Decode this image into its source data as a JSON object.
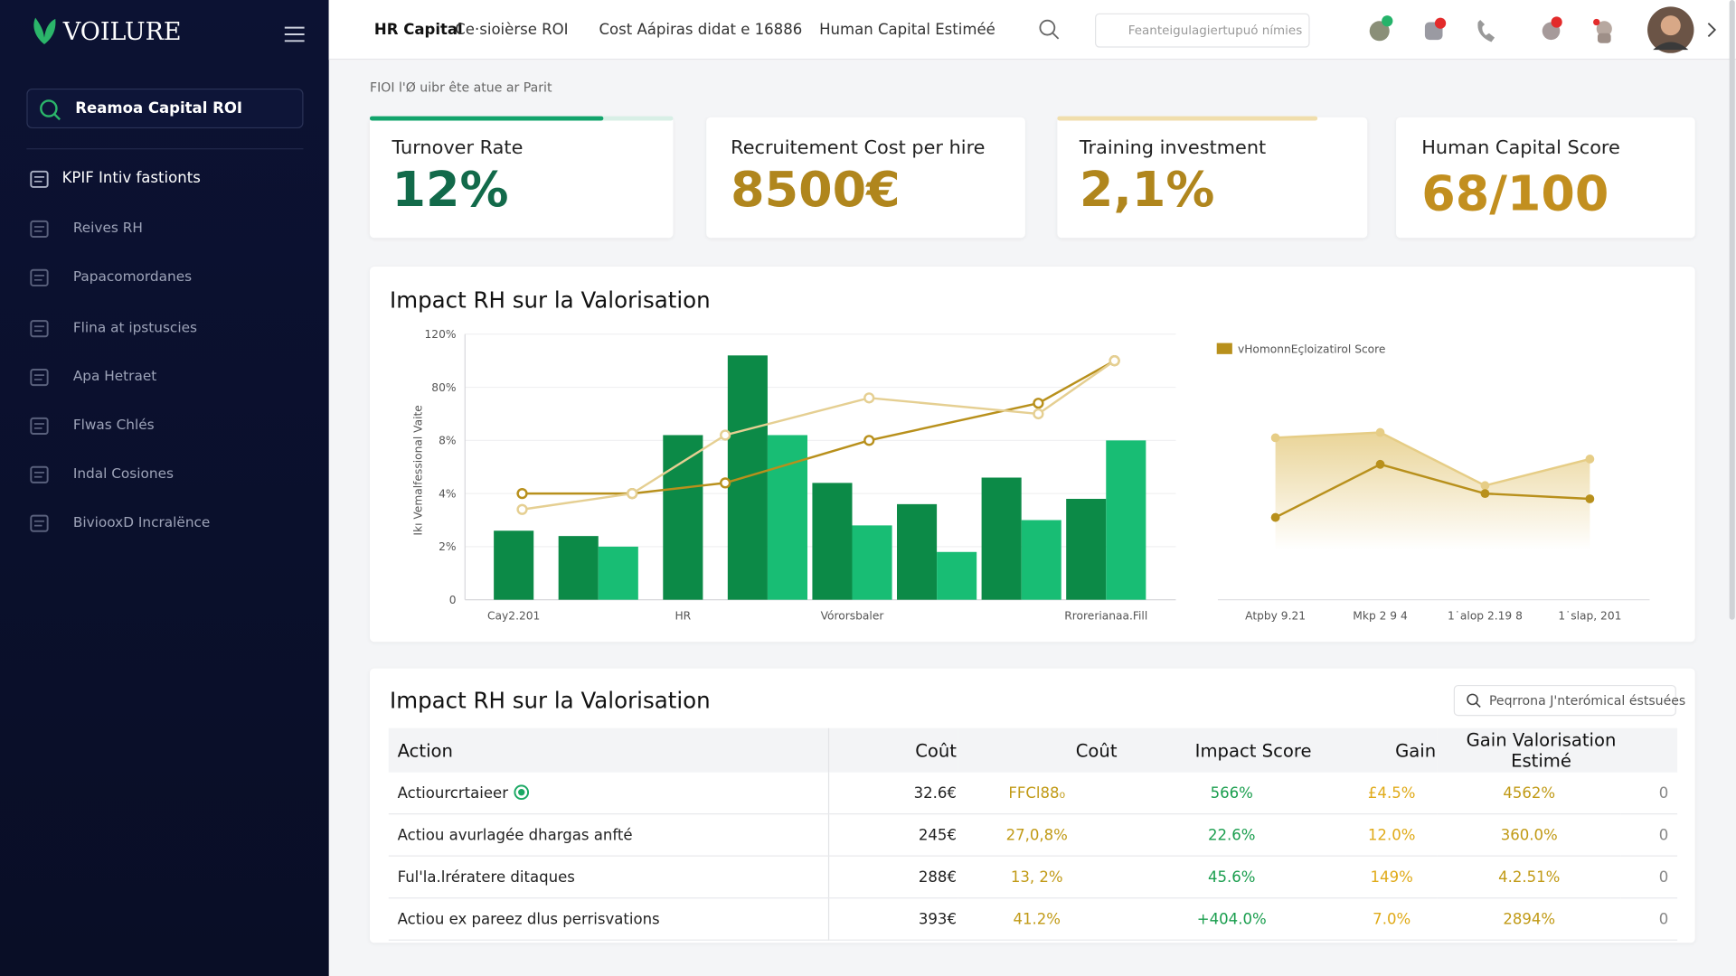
{
  "sidebar": {
    "logo": "VOILURE",
    "search": "Reamoa Capital ROI",
    "menu": [
      "KPIF Intiv fastionts",
      "Reives RH",
      "Papacomordanes",
      "Flina at ipstuscies",
      "Apa Hetraet",
      "Flwas Chlés",
      "Indal Cosiones",
      "BiviooxD Incralënce"
    ]
  },
  "header": {
    "tabs": [
      "HR Capital",
      "Ce·sioièrse ROI",
      "Cost Aápiras didat e 16886",
      "Human Capital Estiméé"
    ],
    "search": "Feanteigulagiertupuó nímies"
  },
  "breadcrumb": "FIOI l'Ø uibr ête atue ar Parit",
  "kpis": [
    {
      "label": "Turnover Rate",
      "value": "12%"
    },
    {
      "label": "Recruitement Cost per hire",
      "value": "8500€"
    },
    {
      "label": "Training investment",
      "value": "2,1%"
    },
    {
      "label": "Human Capital Score",
      "value": "68/100"
    }
  ],
  "chart_panel_title": "Impact RH sur la Valorisation",
  "chart_data": [
    {
      "type": "bar",
      "y_label": "Ikı Vemalfessional Vaite",
      "categories": [
        "Cay2.201",
        null,
        "HR",
        null,
        "Vórorsbaler",
        null,
        null,
        "Rrorerianaa.Fill"
      ],
      "ylim": [
        0,
        5
      ],
      "yticks": [
        {
          "value": 0,
          "label": "0"
        },
        {
          "value": 1,
          "label": "2%"
        },
        {
          "value": 2,
          "label": "4%"
        },
        {
          "value": 3,
          "label": "8%"
        },
        {
          "value": 4,
          "label": "80%"
        },
        {
          "value": 5,
          "label": "120%"
        }
      ],
      "grid": true,
      "series": [
        {
          "color": "#0c8a47",
          "values": [
            1.3,
            1.2,
            3.1,
            4.6,
            2.2,
            1.8,
            2.3,
            1.9
          ]
        },
        {
          "color": "#18bd74",
          "values": [
            null,
            1.0,
            null,
            3.1,
            1.4,
            0.9,
            1.5,
            3.0
          ]
        }
      ],
      "lines": [
        {
          "color": "#b8901c",
          "x": [
            0.1,
            1.4,
            2.5,
            4.2,
            6.2,
            7.1
          ],
          "values": [
            2.0,
            2.0,
            2.2,
            3.0,
            3.7,
            4.5
          ]
        },
        {
          "color": "#e5cf92",
          "x": [
            0.1,
            1.4,
            2.5,
            4.2,
            6.2,
            7.1
          ],
          "values": [
            1.7,
            2.0,
            3.1,
            3.8,
            3.5,
            4.5
          ]
        }
      ]
    },
    {
      "type": "area",
      "legend": "vHomonnEçloizatirol Score",
      "categories": [
        "Atpby 9.21",
        "Mkp 2 9 4",
        "1˙alop 2.19 8",
        "1˙slap, 201"
      ],
      "ylim": [
        0,
        100
      ],
      "series": [
        {
          "color": "#e6cd86",
          "values": [
            61,
            63,
            43,
            53
          ]
        },
        {
          "color": "#b8901c",
          "values": [
            31,
            51,
            40,
            38
          ]
        }
      ]
    }
  ],
  "table": {
    "title": "Impact RH sur la Valorisation",
    "search": "Peqrrona J'nterómical éstsuées",
    "header": [
      "Action",
      "Coût",
      "Coût",
      "Impact Score",
      "Gain",
      "Gain Valorisation Estimé"
    ],
    "rows": [
      [
        "Actiourcrtaieer",
        "32.6€",
        "FFCl88₀",
        "566%",
        "£4.5%",
        "4562%",
        "0"
      ],
      [
        "Actiou avurlagée dhargas anfté",
        "245€",
        "27,0,8%",
        "22.6%",
        "12.0%",
        "360.0%",
        "0"
      ],
      [
        "Ful'la.lrératere ditaques",
        "288€",
        "13, 2%",
        "45.6%",
        "149%",
        "4.2.51%",
        "0"
      ],
      [
        "Actiou ex pareez dlus perrisvations",
        "393€",
        "41.2%",
        "+404.0%",
        "7.0%",
        "2894%",
        "0"
      ]
    ]
  }
}
